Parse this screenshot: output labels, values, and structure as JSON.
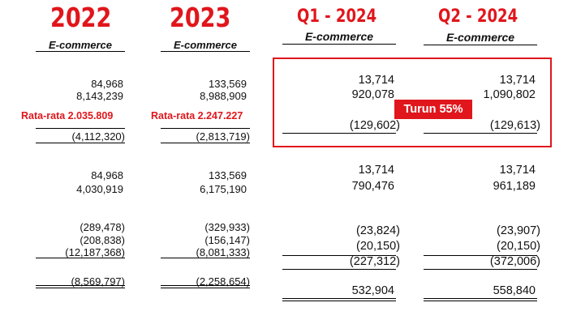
{
  "headers": {
    "y2022": "2022",
    "y2023": "2023",
    "q1": "Q1 - 2024",
    "q2": "Q2 - 2024",
    "sub": "E-commerce"
  },
  "col2022": {
    "r1": "84,968",
    "r2": "8,143,239",
    "avg": "Rata-rata 2.035.809",
    "r3": "(4,112,320)",
    "r4": "84,968",
    "r5": "4,030,919",
    "r6": "(289,478)",
    "r7": "(208,838)",
    "r8": "(12,187,368)",
    "r9": "(8,569,797)"
  },
  "col2023": {
    "r1": "133,569",
    "r2": "8,988,909",
    "avg": "Rata-rata 2.247.227",
    "r3": "(2,813,719)",
    "r4": "133,569",
    "r5": "6,175,190",
    "r6": "(329,933)",
    "r7": "(156,147)",
    "r8": "(8,081,333)",
    "r9": "(2,258,654)"
  },
  "colQ1": {
    "r1": "13,714",
    "r2": "920,078",
    "r3": "(129,602)",
    "r4": "13,714",
    "r5": "790,476",
    "r6": "(23,824)",
    "r7": "(20,150)",
    "r8": "(227,312)",
    "r9": "532,904"
  },
  "colQ2": {
    "r1": "13,714",
    "r2": "1,090,802",
    "r3": "(129,613)",
    "r4": "13,714",
    "r5": "961,189",
    "r6": "(23,907)",
    "r7": "(20,150)",
    "r8": "(372,006)",
    "r9": "558,840"
  },
  "badge": "Turun 55%",
  "colors": {
    "accent": "#e0161c",
    "text": "#111111"
  }
}
